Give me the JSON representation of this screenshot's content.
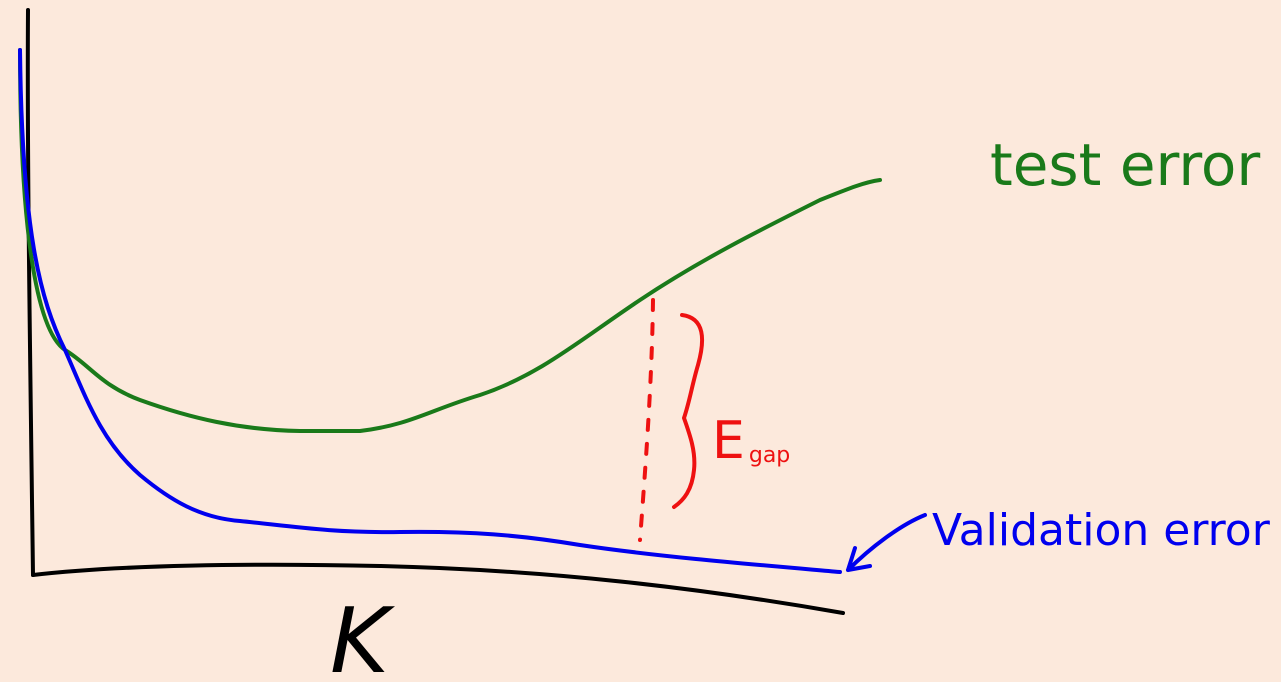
{
  "labels": {
    "test_curve": "test error",
    "validation_curve": "Validation error",
    "x_axis": "K",
    "gap": {
      "main": "E",
      "subscript": "gap"
    }
  }
}
